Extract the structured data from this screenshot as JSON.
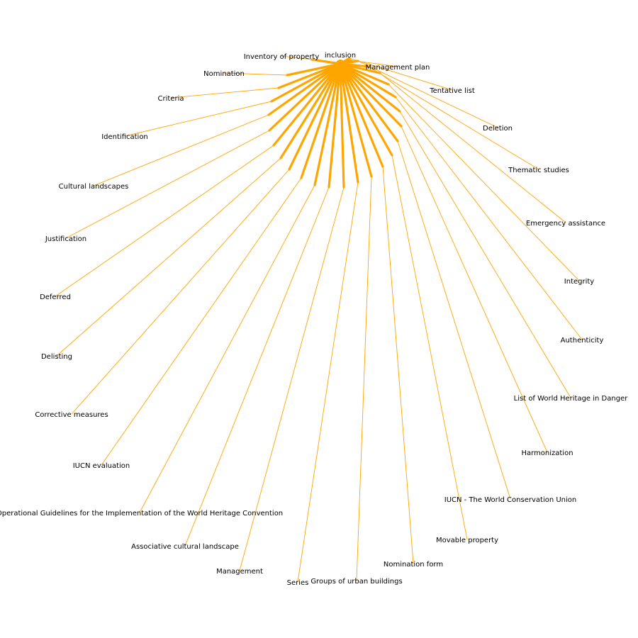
{
  "graph": {
    "hub": {
      "label": "inclusion"
    },
    "edge_color": "#ffa500",
    "label_color": "#000000",
    "nodes": [
      {
        "label": "Inventory of property"
      },
      {
        "label": "Nomination"
      },
      {
        "label": "Criteria"
      },
      {
        "label": "Identification"
      },
      {
        "label": "Cultural landscapes"
      },
      {
        "label": "Justification"
      },
      {
        "label": "Deferred"
      },
      {
        "label": "Delisting"
      },
      {
        "label": "Corrective measures"
      },
      {
        "label": "IUCN evaluation"
      },
      {
        "label": "Operational Guidelines for the Implementation of the World Heritage Convention"
      },
      {
        "label": "Associative cultural landscape"
      },
      {
        "label": "Management"
      },
      {
        "label": "Series"
      },
      {
        "label": "Groups of urban buildings"
      },
      {
        "label": "Nomination form"
      },
      {
        "label": "Movable property"
      },
      {
        "label": "IUCN - The World Conservation Union"
      },
      {
        "label": "Harmonization"
      },
      {
        "label": "List of World Heritage in Danger"
      },
      {
        "label": "Authenticity"
      },
      {
        "label": "Integrity"
      },
      {
        "label": "Emergency assistance"
      },
      {
        "label": "Thematic studies"
      },
      {
        "label": "Deletion"
      },
      {
        "label": "Tentative list"
      },
      {
        "label": "Management plan"
      }
    ]
  }
}
